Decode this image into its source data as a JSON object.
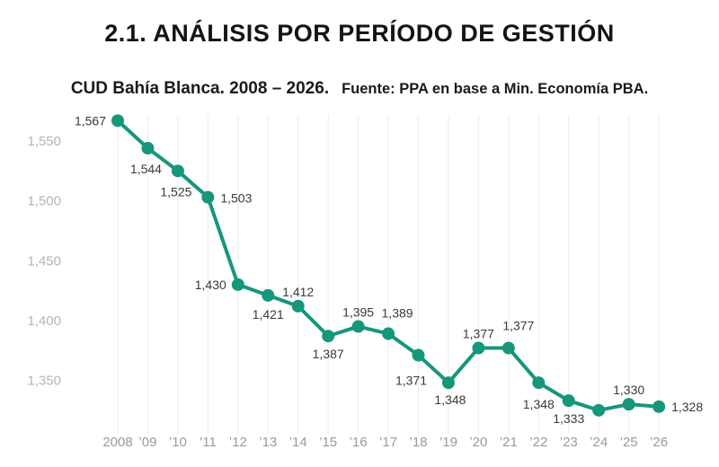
{
  "header": {
    "title": "2.1. ANÁLISIS POR PERÍODO DE GESTIÓN",
    "subtitle_main": "CUD Bahía Blanca. 2008 – 2026.",
    "subtitle_source": "Fuente: PPA en base a Min. Economía PBA."
  },
  "colors": {
    "line": "#16967B",
    "point": "#16967B",
    "data_label": "#3a3a3a",
    "y_axis_label": "#b5b5b5",
    "x_axis_label": "#9a9a9a",
    "gridline": "#ebebeb",
    "title": "#141414",
    "background": "#ffffff"
  },
  "chart_data": {
    "type": "line",
    "title": "2.1. ANÁLISIS POR PERÍODO DE GESTIÓN",
    "subtitle": "CUD Bahía Blanca. 2008 – 2026. Fuente: PPA en base a Min. Economía PBA.",
    "xlabel": "",
    "ylabel": "",
    "legend": "none",
    "grid": "vertical-only",
    "x": [
      "2008",
      "’09",
      "’10",
      "’11",
      "’12",
      "’13",
      "’14",
      "’15",
      "’16",
      "’17",
      "’18",
      "’19",
      "’20",
      "’21",
      "’22",
      "’23",
      "’24",
      "’25",
      "’26"
    ],
    "values": [
      1567,
      1544,
      1525,
      1503,
      1430,
      1421,
      1412,
      1387,
      1395,
      1389,
      1371,
      1348,
      1377,
      1377,
      1348,
      1333,
      1325,
      1330,
      1328
    ],
    "point_labels": [
      "1,567",
      "1,544",
      "1,525",
      "1,503",
      "1,430",
      "1,421",
      "1,412",
      "1,387",
      "1,395",
      "1,389",
      "1,371",
      "1,348",
      "1,377",
      "1,377",
      "1,348",
      "1,333",
      "",
      "1,330",
      "1,328"
    ],
    "y_ticks": [
      "1,550",
      "1,500",
      "1,450",
      "1,400",
      "1,350"
    ],
    "y_tick_values": [
      1550,
      1500,
      1450,
      1400,
      1350
    ],
    "y_axis_range_shown": [
      1350,
      1550
    ],
    "label_offsets": [
      [
        "end",
        -13,
        5
      ],
      [
        "middle",
        -2,
        28
      ],
      [
        "middle",
        -2,
        28
      ],
      [
        "start",
        14,
        6
      ],
      [
        "end",
        -13,
        5
      ],
      [
        "middle",
        0,
        26
      ],
      [
        "middle",
        0,
        -11
      ],
      [
        "middle",
        0,
        25
      ],
      [
        "middle",
        0,
        -11
      ],
      [
        "middle",
        10,
        -18
      ],
      [
        "middle",
        -8,
        33
      ],
      [
        "middle",
        2,
        24
      ],
      [
        "middle",
        0,
        -11
      ],
      [
        "middle",
        11,
        -20
      ],
      [
        "middle",
        0,
        29
      ],
      [
        "middle",
        0,
        25
      ],
      [
        "middle",
        0,
        0
      ],
      [
        "middle",
        0,
        -11
      ],
      [
        "start",
        14,
        5
      ]
    ]
  }
}
